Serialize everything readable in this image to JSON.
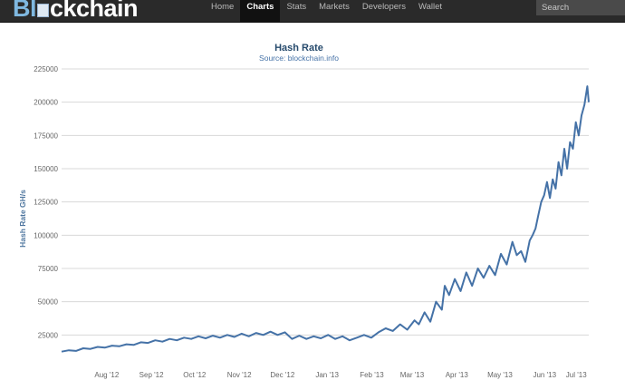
{
  "header": {
    "logo_part1": "Bl",
    "logo_part2": "ckchain",
    "nav": [
      {
        "label": "Home",
        "active": false
      },
      {
        "label": "Charts",
        "active": true
      },
      {
        "label": "Stats",
        "active": false
      },
      {
        "label": "Markets",
        "active": false
      },
      {
        "label": "Developers",
        "active": false
      },
      {
        "label": "Wallet",
        "active": false
      }
    ],
    "search_placeholder": "Search"
  },
  "chart_data": {
    "type": "line",
    "title": "Hash Rate",
    "subtitle": "Source: blockchain.info",
    "ylabel": "Hash Rate GH/s",
    "xlabel": "",
    "ylim": [
      0,
      225000
    ],
    "yticks": [
      25000,
      50000,
      75000,
      100000,
      125000,
      150000,
      175000,
      200000,
      225000
    ],
    "xticks": [
      "Aug '12",
      "Sep '12",
      "Oct '12",
      "Nov '12",
      "Dec '12",
      "Jan '13",
      "Feb '13",
      "Mar '13",
      "Apr '13",
      "May '13",
      "Jun '13",
      "Jul '13"
    ],
    "x_range": [
      "2012-07-09",
      "2013-07-10"
    ],
    "grid": true,
    "legend": "none",
    "color": "#4572a7",
    "series": [
      {
        "x": [
          "2012-07-09",
          "2012-07-14",
          "2012-07-19",
          "2012-07-24",
          "2012-07-29",
          "2012-08-03",
          "2012-08-08",
          "2012-08-13",
          "2012-08-18",
          "2012-08-23",
          "2012-08-28",
          "2012-09-02",
          "2012-09-07",
          "2012-09-12",
          "2012-09-17",
          "2012-09-22",
          "2012-09-27",
          "2012-10-02",
          "2012-10-07",
          "2012-10-12",
          "2012-10-17",
          "2012-10-22",
          "2012-10-27",
          "2012-11-01",
          "2012-11-06",
          "2012-11-11",
          "2012-11-16",
          "2012-11-21",
          "2012-11-26",
          "2012-12-01",
          "2012-12-06",
          "2012-12-11",
          "2012-12-16",
          "2012-12-21",
          "2012-12-26",
          "2012-12-31",
          "2013-01-05",
          "2013-01-10",
          "2013-01-15",
          "2013-01-20",
          "2013-01-25",
          "2013-01-30",
          "2013-02-04",
          "2013-02-09",
          "2013-02-14",
          "2013-02-19",
          "2013-02-24",
          "2013-03-01",
          "2013-03-06",
          "2013-03-11",
          "2013-03-14",
          "2013-03-18",
          "2013-03-22",
          "2013-03-26",
          "2013-03-30",
          "2013-04-01",
          "2013-04-04",
          "2013-04-08",
          "2013-04-12",
          "2013-04-16",
          "2013-04-20",
          "2013-04-24",
          "2013-04-28",
          "2013-05-02",
          "2013-05-06",
          "2013-05-10",
          "2013-05-14",
          "2013-05-18",
          "2013-05-21",
          "2013-05-24",
          "2013-05-27",
          "2013-05-30",
          "2013-06-01",
          "2013-06-03",
          "2013-06-05",
          "2013-06-07",
          "2013-06-09",
          "2013-06-11",
          "2013-06-13",
          "2013-06-15",
          "2013-06-17",
          "2013-06-19",
          "2013-06-21",
          "2013-06-23",
          "2013-06-25",
          "2013-06-27",
          "2013-06-29",
          "2013-07-01",
          "2013-07-03",
          "2013-07-05",
          "2013-07-07",
          "2013-07-09",
          "2013-07-10"
        ],
        "values": [
          12500,
          13500,
          13000,
          15000,
          14500,
          16000,
          15500,
          17000,
          16500,
          18000,
          17500,
          19500,
          19000,
          21000,
          20000,
          22000,
          21000,
          23000,
          22000,
          24000,
          22500,
          24500,
          23000,
          25000,
          23500,
          26000,
          24000,
          26500,
          25000,
          27500,
          25000,
          27000,
          22000,
          24500,
          22000,
          24000,
          22500,
          25000,
          22000,
          24000,
          21000,
          23000,
          25000,
          23000,
          27000,
          30000,
          28000,
          33000,
          29000,
          36000,
          33000,
          42000,
          35000,
          50000,
          44000,
          62000,
          55000,
          67000,
          58000,
          72000,
          62000,
          75000,
          68000,
          77000,
          70000,
          86000,
          78000,
          95000,
          85000,
          88000,
          80000,
          96000,
          100000,
          105000,
          115000,
          125000,
          130000,
          140000,
          128000,
          142000,
          135000,
          155000,
          145000,
          165000,
          150000,
          170000,
          165000,
          185000,
          175000,
          190000,
          198000,
          212000,
          200000
        ]
      }
    ]
  }
}
